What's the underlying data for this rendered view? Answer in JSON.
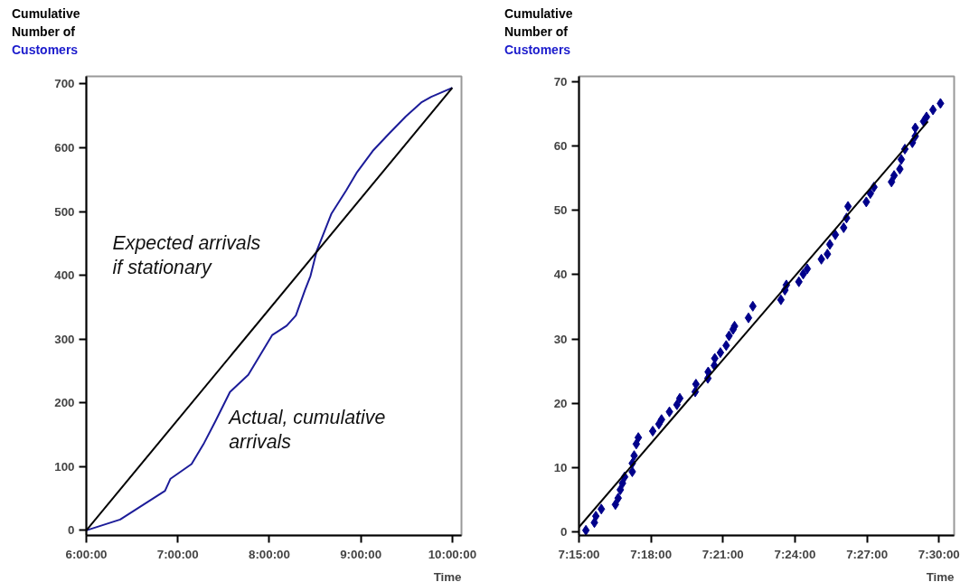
{
  "chart_data": [
    {
      "type": "line",
      "ylabel": "Cumulative\nNumber of\nCustomers",
      "xlabel": "Time",
      "xlim": [
        6,
        10.1
      ],
      "ylim": [
        -8,
        712
      ],
      "xticks": [
        {
          "value": 6,
          "label": "6:00:00"
        },
        {
          "value": 7,
          "label": "7:00:00"
        },
        {
          "value": 8,
          "label": "8:00:00"
        },
        {
          "value": 9,
          "label": "9:00:00"
        },
        {
          "value": 10,
          "label": "10:00:00"
        }
      ],
      "yticks": [
        0,
        100,
        200,
        300,
        400,
        500,
        600,
        700
      ],
      "grid": false,
      "series": [
        {
          "color": "#1c1c99",
          "x": [
            6.0,
            6.37,
            6.86,
            6.92,
            7.15,
            7.28,
            7.41,
            7.57,
            7.77,
            8.03,
            8.19,
            8.29,
            8.39,
            8.45,
            8.52,
            8.68,
            8.84,
            8.96,
            9.13,
            9.3,
            9.49,
            9.66,
            9.77,
            10.0
          ],
          "values": [
            0,
            17,
            62,
            81,
            104,
            135,
            171,
            217,
            244,
            306,
            321,
            337,
            377,
            399,
            439,
            497,
            533,
            562,
            595,
            621,
            649,
            671,
            680,
            694
          ]
        },
        {
          "color": "#000000",
          "x": [
            6.0,
            10.0
          ],
          "values": [
            0,
            694
          ]
        }
      ],
      "annotations": [
        "Expected arrivals\nif stationary",
        "Actual, cumulative\narrivals"
      ]
    },
    {
      "type": "scatter",
      "ylabel": "Cumulative\nNumber of\nCustomers",
      "xlabel": "Time",
      "xlim": [
        7.25,
        7.5105
      ],
      "ylim": [
        -0.5,
        70.8
      ],
      "xticks": [
        {
          "value": 7.25,
          "label": "7:15:00"
        },
        {
          "value": 7.3,
          "label": "7:18:00"
        },
        {
          "value": 7.35,
          "label": "7:21:00"
        },
        {
          "value": 7.4,
          "label": "7:24:00"
        },
        {
          "value": 7.45,
          "label": "7:27:00"
        },
        {
          "value": 7.5,
          "label": "7:30:00"
        }
      ],
      "yticks": [
        0,
        10,
        20,
        30,
        40,
        50,
        60,
        70
      ],
      "grid": false,
      "series": [
        {
          "color": "#00008b",
          "marker": "diamond",
          "x": [
            7.2548,
            7.2607,
            7.2617,
            7.2655,
            7.2753,
            7.2772,
            7.2787,
            7.2802,
            7.2817,
            7.287,
            7.287,
            7.2883,
            7.2898,
            7.2912,
            7.3012,
            7.3055,
            7.3073,
            7.3128,
            7.318,
            7.32,
            7.3307,
            7.3312,
            7.3395,
            7.3397,
            7.344,
            7.3443,
            7.3482,
            7.3522,
            7.3542,
            7.357,
            7.358,
            7.3677,
            7.3707,
            7.3902,
            7.393,
            7.394,
            7.4027,
            7.4057,
            7.4085,
            7.4183,
            7.4225,
            7.4242,
            7.428,
            7.4338,
            7.4358,
            7.4368,
            7.4495,
            7.4523,
            7.4548,
            7.467,
            7.4688,
            7.4728,
            7.4738,
            7.4763,
            7.4815,
            7.4835,
            7.4835,
            7.4893,
            7.4913,
            7.4958,
            7.501
          ],
          "values": [
            0.3,
            1.5,
            2.5,
            3.6,
            4.3,
            5.3,
            6.6,
            7.6,
            8.6,
            9.4,
            10.7,
            11.9,
            13.7,
            14.7,
            15.7,
            16.8,
            17.5,
            18.7,
            19.8,
            20.8,
            21.8,
            23.0,
            23.9,
            24.9,
            25.9,
            27.0,
            27.9,
            29.0,
            30.5,
            31.5,
            32.0,
            33.3,
            35.1,
            36.1,
            37.6,
            38.4,
            38.9,
            40.1,
            40.9,
            42.4,
            43.2,
            44.7,
            46.2,
            47.3,
            48.8,
            50.6,
            51.3,
            52.6,
            53.6,
            54.4,
            55.4,
            56.4,
            57.9,
            59.5,
            60.5,
            61.5,
            62.8,
            63.8,
            64.5,
            65.6,
            66.6
          ]
        },
        {
          "type": "line",
          "color": "#000000",
          "x": [
            7.25,
            7.4923
          ],
          "values": [
            0.8,
            63.8
          ]
        }
      ]
    }
  ]
}
